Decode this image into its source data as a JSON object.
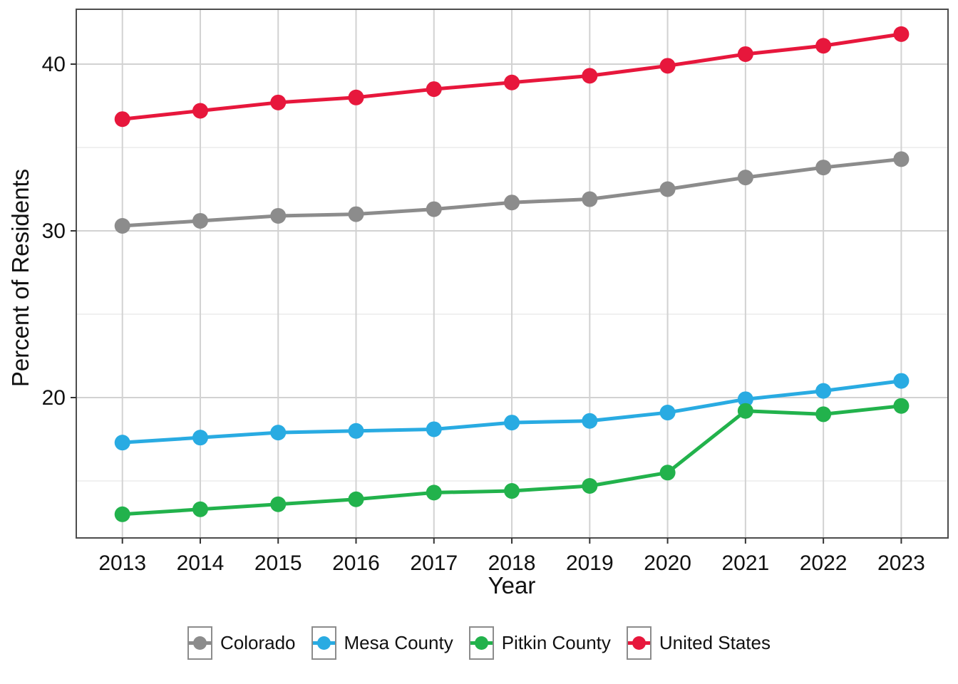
{
  "chart_data": {
    "type": "line",
    "title": "",
    "xlabel": "Year",
    "ylabel": "Percent of Residents",
    "x": [
      2013,
      2014,
      2015,
      2016,
      2017,
      2018,
      2019,
      2020,
      2021,
      2022,
      2023
    ],
    "yticks": [
      20,
      30,
      40
    ],
    "yticks_minor": [
      15,
      25,
      35
    ],
    "ylim": [
      11.6,
      43.3
    ],
    "grid": true,
    "legend_position": "bottom",
    "series": [
      {
        "name": "Colorado",
        "color": "#8C8C8C",
        "values": [
          30.3,
          30.6,
          30.9,
          31.0,
          31.3,
          31.7,
          31.9,
          32.5,
          33.2,
          33.8,
          34.3
        ]
      },
      {
        "name": "Mesa County",
        "color": "#29ABE2",
        "values": [
          17.3,
          17.6,
          17.9,
          18.0,
          18.1,
          18.5,
          18.6,
          19.1,
          19.9,
          20.4,
          21.0
        ]
      },
      {
        "name": "Pitkin County",
        "color": "#22B24C",
        "values": [
          13.0,
          13.3,
          13.6,
          13.9,
          14.3,
          14.4,
          14.7,
          15.5,
          19.2,
          19.0,
          19.5
        ]
      },
      {
        "name": "United States",
        "color": "#E7173C",
        "values": [
          36.7,
          37.2,
          37.7,
          38.0,
          38.5,
          38.9,
          39.3,
          39.9,
          40.6,
          41.1,
          41.8
        ]
      }
    ]
  }
}
